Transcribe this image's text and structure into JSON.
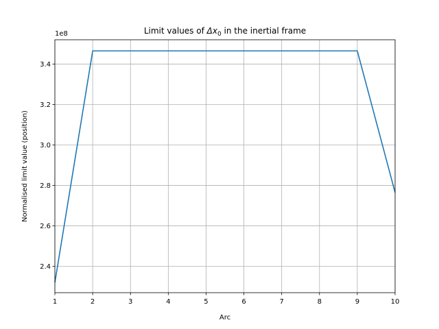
{
  "chart_data": {
    "type": "line",
    "title_prefix": "Limit values of ",
    "title_symbol": "Δx",
    "title_subscript": "0",
    "title_suffix": " in the inertial frame",
    "xlabel": "Arc",
    "ylabel": "Normalised limit value (position)",
    "y_offset_text": "1e8",
    "xlim": [
      1,
      10
    ],
    "ylim": [
      2.27,
      3.52
    ],
    "x_ticks": [
      1,
      2,
      3,
      4,
      5,
      6,
      7,
      8,
      9,
      10
    ],
    "y_ticks": [
      2.4,
      2.6,
      2.8,
      3.0,
      3.2,
      3.4
    ],
    "y_tick_labels": [
      "2.4",
      "2.6",
      "2.8",
      "3.0",
      "3.2",
      "3.4"
    ],
    "grid": true,
    "series": [
      {
        "color": "#1f77b4",
        "x": [
          1,
          2,
          3,
          4,
          5,
          6,
          7,
          8,
          9,
          10
        ],
        "y": [
          2.32,
          3.465,
          3.465,
          3.465,
          3.465,
          3.465,
          3.465,
          3.465,
          3.465,
          2.765
        ]
      }
    ]
  }
}
